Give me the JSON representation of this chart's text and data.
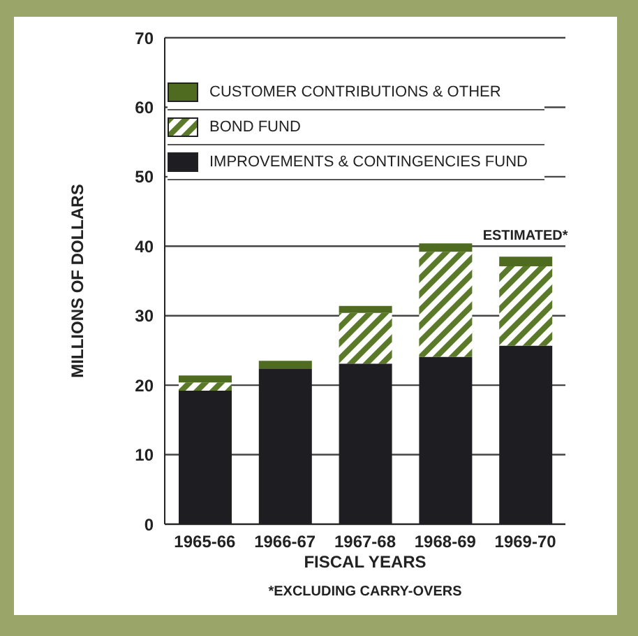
{
  "chart_data": {
    "type": "bar",
    "stacked": true,
    "xlabel": "FISCAL YEARS",
    "ylabel": "MILLIONS OF DOLLARS",
    "categories": [
      "1965-66",
      "1966-67",
      "1967-68",
      "1968-69",
      "1969-70"
    ],
    "series": [
      {
        "name": "IMPROVEMENTS & CONTINGENCIES FUND",
        "color": "#1e1e22",
        "values": [
          19.2,
          22.4,
          23.1,
          24.1,
          25.7
        ]
      },
      {
        "name": "BOND FUND",
        "color": "#5a7a2a",
        "values": [
          1.2,
          0,
          7.3,
          15.1,
          11.4
        ]
      },
      {
        "name": "CUSTOMER CONTRIBUTIONS & OTHER",
        "color": "#4f6b1f",
        "values": [
          1.0,
          1.1,
          1.0,
          1.2,
          1.4
        ]
      }
    ],
    "ylim": [
      0,
      70
    ],
    "yticks": [
      0,
      10,
      20,
      30,
      40,
      50,
      60,
      70
    ],
    "grid": "y",
    "legend": "top left",
    "annotations": [
      {
        "text": "ESTIMATED*",
        "x": "1969-70",
        "y": 38.5
      },
      "*EXCLUDING CARRY-OVERS"
    ]
  }
}
